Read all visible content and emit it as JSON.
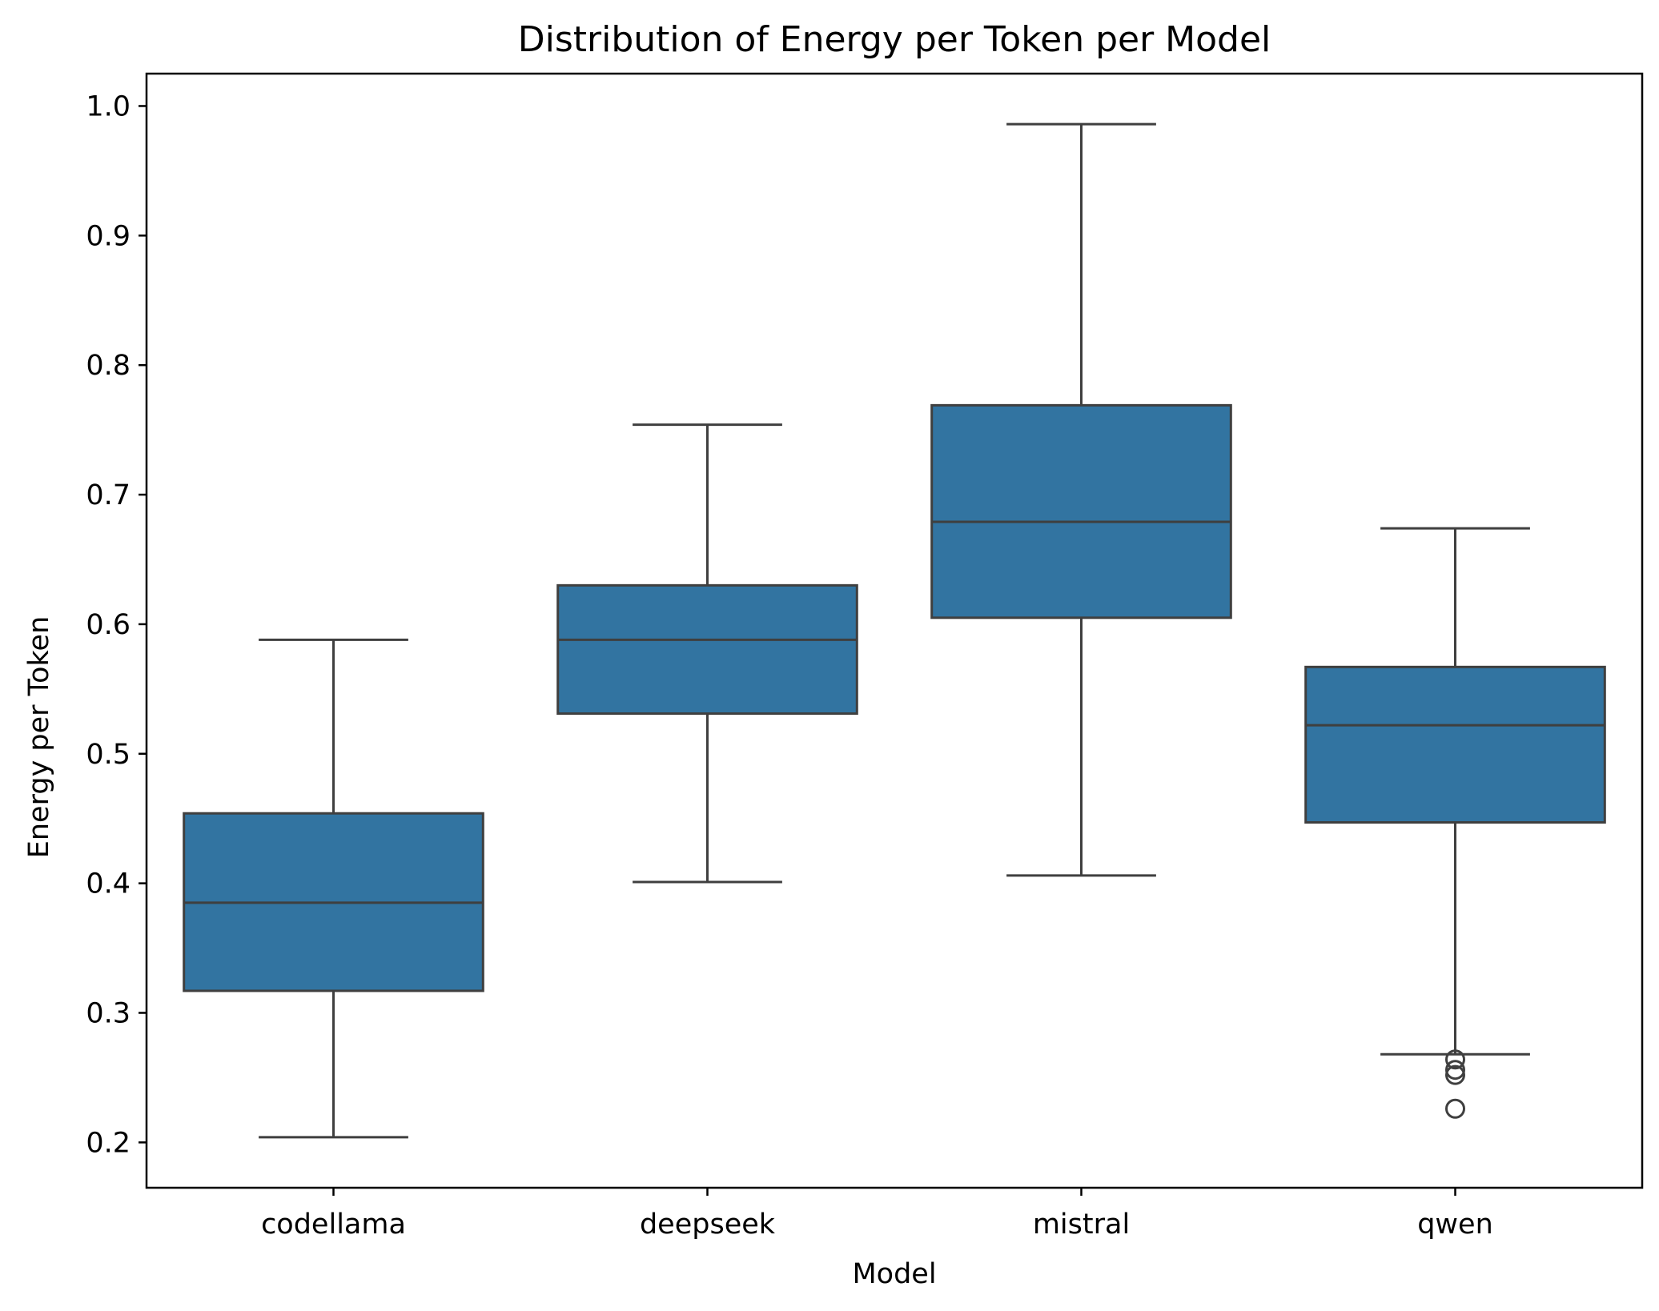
{
  "chart_data": {
    "type": "box",
    "title": "Distribution of Energy per Token per Model",
    "xlabel": "Model",
    "ylabel": "Energy per Token",
    "categories": [
      "codellama",
      "deepseek",
      "mistral",
      "qwen"
    ],
    "ylim": [
      0.165,
      1.025
    ],
    "yticks": [
      0.2,
      0.3,
      0.4,
      0.5,
      0.6,
      0.7,
      0.8,
      0.9,
      1.0
    ],
    "ytick_labels": [
      "0.2",
      "0.3",
      "0.4",
      "0.5",
      "0.6",
      "0.7",
      "0.8",
      "0.9",
      "1.0"
    ],
    "grid": false,
    "legend": "none",
    "color": "#3274a1",
    "line_color": "#3f3f3f",
    "boxes": [
      {
        "category": "codellama",
        "whisker_low": 0.204,
        "q1": 0.317,
        "median": 0.385,
        "q3": 0.454,
        "whisker_high": 0.588,
        "outliers": []
      },
      {
        "category": "deepseek",
        "whisker_low": 0.401,
        "q1": 0.531,
        "median": 0.588,
        "q3": 0.63,
        "whisker_high": 0.754,
        "outliers": []
      },
      {
        "category": "mistral",
        "whisker_low": 0.406,
        "q1": 0.605,
        "median": 0.679,
        "q3": 0.769,
        "whisker_high": 0.986,
        "outliers": []
      },
      {
        "category": "qwen",
        "whisker_low": 0.268,
        "q1": 0.447,
        "median": 0.522,
        "q3": 0.567,
        "whisker_high": 0.674,
        "outliers": [
          0.264,
          0.256,
          0.252,
          0.226
        ]
      }
    ]
  }
}
